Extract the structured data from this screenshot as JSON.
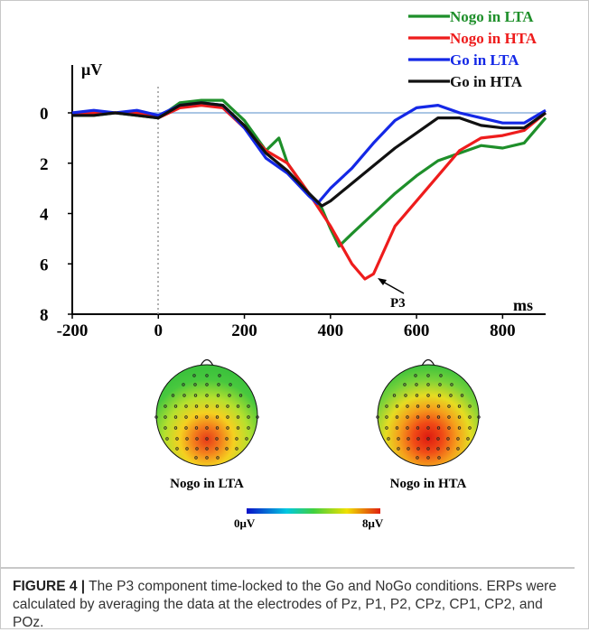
{
  "chart_data": {
    "type": "line",
    "ylabel": "μV",
    "xlabel": "ms",
    "xlim": [
      -200,
      900
    ],
    "ylim": [
      0,
      8
    ],
    "y_inverted": true,
    "x_ticks": [
      "-200",
      "0",
      "200",
      "400",
      "600",
      "800"
    ],
    "y_ticks": [
      "0",
      "2",
      "4",
      "6",
      "8"
    ],
    "legend_position": "top-right",
    "series": [
      {
        "name": "Nogo in LTA",
        "color": "#1e8f2a",
        "points": [
          [
            -200,
            0.1
          ],
          [
            -150,
            0.1
          ],
          [
            -100,
            0.0
          ],
          [
            -50,
            0.1
          ],
          [
            0,
            0.2
          ],
          [
            50,
            -0.4
          ],
          [
            100,
            -0.5
          ],
          [
            150,
            -0.5
          ],
          [
            200,
            0.3
          ],
          [
            250,
            1.5
          ],
          [
            280,
            1.0
          ],
          [
            300,
            2.0
          ],
          [
            350,
            3.2
          ],
          [
            380,
            3.8
          ],
          [
            400,
            4.6
          ],
          [
            420,
            5.3
          ],
          [
            450,
            4.8
          ],
          [
            500,
            4.0
          ],
          [
            550,
            3.2
          ],
          [
            600,
            2.5
          ],
          [
            650,
            1.9
          ],
          [
            700,
            1.6
          ],
          [
            750,
            1.3
          ],
          [
            800,
            1.4
          ],
          [
            850,
            1.2
          ],
          [
            900,
            0.2
          ]
        ]
      },
      {
        "name": "Nogo in HTA",
        "color": "#ee1c1c",
        "points": [
          [
            -200,
            0.0
          ],
          [
            -150,
            0.0
          ],
          [
            -100,
            0.0
          ],
          [
            -50,
            0.0
          ],
          [
            0,
            0.2
          ],
          [
            50,
            -0.2
          ],
          [
            100,
            -0.3
          ],
          [
            150,
            -0.2
          ],
          [
            200,
            0.6
          ],
          [
            250,
            1.5
          ],
          [
            300,
            2.0
          ],
          [
            350,
            3.2
          ],
          [
            400,
            4.5
          ],
          [
            450,
            6.0
          ],
          [
            480,
            6.6
          ],
          [
            500,
            6.4
          ],
          [
            550,
            4.5
          ],
          [
            600,
            3.5
          ],
          [
            650,
            2.5
          ],
          [
            700,
            1.5
          ],
          [
            750,
            1.0
          ],
          [
            800,
            0.9
          ],
          [
            850,
            0.7
          ],
          [
            900,
            0.0
          ]
        ]
      },
      {
        "name": "Go in LTA",
        "color": "#1428e6",
        "points": [
          [
            -200,
            0.0
          ],
          [
            -150,
            -0.1
          ],
          [
            -100,
            0.0
          ],
          [
            -50,
            -0.1
          ],
          [
            0,
            0.1
          ],
          [
            50,
            -0.3
          ],
          [
            100,
            -0.4
          ],
          [
            150,
            -0.3
          ],
          [
            200,
            0.6
          ],
          [
            250,
            1.8
          ],
          [
            300,
            2.4
          ],
          [
            350,
            3.3
          ],
          [
            370,
            3.6
          ],
          [
            400,
            3.0
          ],
          [
            450,
            2.2
          ],
          [
            500,
            1.2
          ],
          [
            550,
            0.3
          ],
          [
            600,
            -0.2
          ],
          [
            650,
            -0.3
          ],
          [
            700,
            0.0
          ],
          [
            750,
            0.2
          ],
          [
            800,
            0.4
          ],
          [
            850,
            0.4
          ],
          [
            900,
            -0.1
          ]
        ]
      },
      {
        "name": "Go in HTA",
        "color": "#111111",
        "points": [
          [
            -200,
            0.1
          ],
          [
            -150,
            0.1
          ],
          [
            -100,
            0.0
          ],
          [
            -50,
            0.1
          ],
          [
            0,
            0.2
          ],
          [
            50,
            -0.3
          ],
          [
            100,
            -0.4
          ],
          [
            150,
            -0.3
          ],
          [
            200,
            0.5
          ],
          [
            250,
            1.6
          ],
          [
            300,
            2.3
          ],
          [
            350,
            3.2
          ],
          [
            380,
            3.7
          ],
          [
            400,
            3.5
          ],
          [
            450,
            2.8
          ],
          [
            500,
            2.1
          ],
          [
            550,
            1.4
          ],
          [
            600,
            0.8
          ],
          [
            650,
            0.2
          ],
          [
            700,
            0.2
          ],
          [
            750,
            0.5
          ],
          [
            800,
            0.6
          ],
          [
            850,
            0.6
          ],
          [
            900,
            0.0
          ]
        ]
      }
    ],
    "annotation": "P3",
    "annotation_point": [
      480,
      6.6
    ],
    "colorbar": {
      "min_label": "0μV",
      "max_label": "8μV",
      "colors": [
        "#0a10c8",
        "#00c8e0",
        "#40d040",
        "#f0e000",
        "#e02010"
      ]
    },
    "topomaps": [
      {
        "label": "Nogo in LTA",
        "intensity": 0.75
      },
      {
        "label": "Nogo in HTA",
        "intensity": 1.0
      }
    ]
  },
  "caption": {
    "figure_label": "FIGURE 4",
    "separator": "|",
    "text": "The P3 component time-locked to the Go and NoGo conditions. ERPs were calculated by averaging the data at the electrodes of Pz, P1, P2, CPz, CP1, CP2, and POz."
  }
}
